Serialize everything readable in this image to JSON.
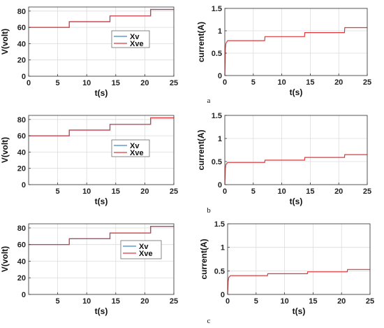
{
  "chart_data": [
    {
      "type": "line",
      "panel": "a-left",
      "xlabel": "t(s)",
      "ylabel": "V(volt)",
      "xlim": [
        0,
        25
      ],
      "ylim": [
        0,
        85
      ],
      "xticks": [
        0,
        5,
        10,
        15,
        20,
        25
      ],
      "yticks": [
        0,
        20,
        40,
        60,
        80
      ],
      "grid": true,
      "legend": {
        "position": "center-right",
        "entries": [
          "Xv",
          "Xve"
        ]
      },
      "series": [
        {
          "name": "Xv",
          "color": "#3e86c4",
          "x": [
            0,
            7,
            7,
            14,
            14,
            21,
            21,
            25
          ],
          "y": [
            60,
            60,
            67,
            67,
            74,
            74,
            82,
            82
          ]
        },
        {
          "name": "Xve",
          "color": "#e0383c",
          "x": [
            0,
            7,
            7,
            14,
            14,
            21,
            21,
            25
          ],
          "y": [
            60,
            60,
            67,
            67,
            74,
            74,
            82,
            82
          ]
        }
      ]
    },
    {
      "type": "line",
      "panel": "a-right",
      "xlabel": "t(s)",
      "ylabel": "current(A)",
      "xlim": [
        0,
        25
      ],
      "ylim": [
        0,
        1.5
      ],
      "xticks": [
        0,
        5,
        10,
        15,
        20,
        25
      ],
      "yticks": [
        0,
        0.5,
        1,
        1.5
      ],
      "grid": true,
      "series": [
        {
          "color": "#e0383c",
          "x": [
            0,
            0.1,
            0.2,
            0.5,
            7,
            7.05,
            14,
            14.05,
            21,
            21.05,
            25
          ],
          "y": [
            0,
            0.6,
            0.72,
            0.78,
            0.78,
            0.87,
            0.87,
            0.96,
            0.96,
            1.07,
            1.07
          ]
        }
      ]
    },
    {
      "type": "line",
      "panel": "b-left",
      "xlabel": "t(s)",
      "ylabel": "V(volt)",
      "xlim": [
        0,
        25
      ],
      "ylim": [
        0,
        85
      ],
      "xticks": [
        5,
        10,
        15,
        20,
        25
      ],
      "yticks": [
        0,
        20,
        40,
        60,
        80
      ],
      "grid": true,
      "legend": {
        "position": "center-right",
        "entries": [
          "Xv",
          "Xve"
        ]
      },
      "series": [
        {
          "name": "Xv",
          "color": "#3e86c4",
          "x": [
            0,
            7,
            7,
            14,
            14,
            21,
            21,
            25
          ],
          "y": [
            60,
            60,
            67,
            67,
            74,
            74,
            82,
            82
          ]
        },
        {
          "name": "Xve",
          "color": "#e0383c",
          "x": [
            0,
            7,
            7,
            14,
            14,
            21,
            21,
            25
          ],
          "y": [
            60,
            60,
            67,
            67,
            74,
            74,
            82,
            82
          ]
        }
      ]
    },
    {
      "type": "line",
      "panel": "b-right",
      "xlabel": "t(s)",
      "ylabel": "current(A)",
      "xlim": [
        0,
        25
      ],
      "ylim": [
        0,
        1.5
      ],
      "xticks": [
        0,
        5,
        10,
        15,
        20,
        25
      ],
      "yticks": [
        0,
        0.5,
        1,
        1.5
      ],
      "grid": true,
      "series": [
        {
          "color": "#e0383c",
          "x": [
            0,
            0.1,
            0.2,
            0.5,
            7,
            7.05,
            14,
            14.05,
            21,
            21.05,
            25
          ],
          "y": [
            0,
            0.35,
            0.44,
            0.48,
            0.48,
            0.53,
            0.53,
            0.59,
            0.59,
            0.65,
            0.65
          ]
        }
      ]
    },
    {
      "type": "line",
      "panel": "c-left",
      "xlabel": "t(s)",
      "ylabel": "V(volt)",
      "xlim": [
        0,
        25
      ],
      "ylim": [
        0,
        85
      ],
      "xticks": [
        5,
        10,
        15,
        20,
        25
      ],
      "yticks": [
        0,
        20,
        40,
        60,
        80
      ],
      "grid": true,
      "legend": {
        "position": "center-right",
        "entries": [
          "Xv",
          "Xve"
        ]
      },
      "series": [
        {
          "name": "Xv",
          "color": "#3e86c4",
          "x": [
            0,
            7,
            7,
            14,
            14,
            21,
            21,
            25
          ],
          "y": [
            60,
            60,
            67,
            67,
            74,
            74,
            82,
            82
          ]
        },
        {
          "name": "Xve",
          "color": "#e0383c",
          "x": [
            0,
            7,
            7,
            14,
            14,
            21,
            21,
            25
          ],
          "y": [
            60,
            60,
            67,
            67,
            74,
            74,
            82,
            82
          ]
        }
      ]
    },
    {
      "type": "line",
      "panel": "c-right",
      "xlabel": "t(s)",
      "ylabel": "current(A)",
      "xlim": [
        0,
        25
      ],
      "ylim": [
        0,
        1.5
      ],
      "xticks": [
        0,
        5,
        10,
        15,
        20,
        25
      ],
      "yticks": [
        0,
        0.5,
        1,
        1.5
      ],
      "grid": true,
      "series": [
        {
          "color": "#e0383c",
          "x": [
            0,
            0.1,
            0.2,
            0.5,
            7,
            7.05,
            14,
            14.05,
            21,
            21.05,
            25
          ],
          "y": [
            0,
            0.28,
            0.36,
            0.4,
            0.4,
            0.44,
            0.44,
            0.48,
            0.48,
            0.53,
            0.53
          ]
        }
      ]
    }
  ],
  "captions": [
    "a",
    "b",
    "c"
  ]
}
